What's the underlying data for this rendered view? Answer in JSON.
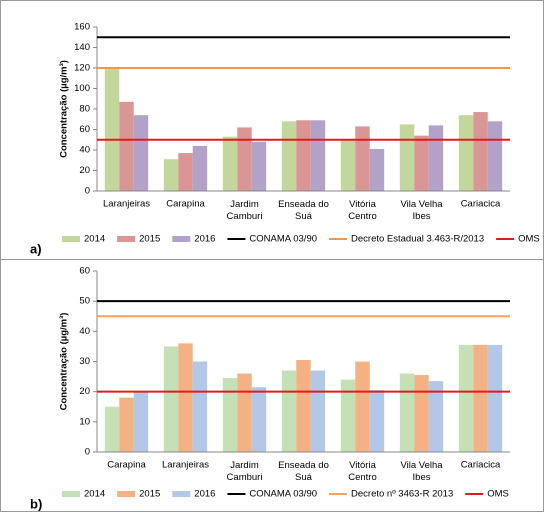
{
  "chart_data": [
    {
      "type": "bar",
      "panel_label": "a)",
      "y_label": "Concentração (µg/m³)",
      "categories": [
        "Laranjeiras",
        "Carapina",
        "Jardim\nCamburi",
        "Enseada do\nSuá",
        "Vitória\nCentro",
        "Vila Velha\nIbes",
        "Cariacica"
      ],
      "series": [
        {
          "name": "2014",
          "color": "#c3d69b",
          "values": [
            120,
            31,
            53,
            68,
            50,
            65,
            74
          ]
        },
        {
          "name": "2015",
          "color": "#d99694",
          "values": [
            87,
            37,
            62,
            69,
            63,
            54,
            77
          ]
        },
        {
          "name": "2016",
          "color": "#b3a2c7",
          "values": [
            74,
            44,
            48,
            69,
            41,
            64,
            68
          ]
        }
      ],
      "reference_lines": [
        {
          "name": "CONAMA 03/90",
          "color": "#000000",
          "value": 150
        },
        {
          "name": "Decreto Estadual 3.463-R/2013",
          "color": "#f79646",
          "value": 120
        },
        {
          "name": "OMS",
          "color": "#e41a1c",
          "value": 50
        }
      ],
      "ylim": [
        0,
        160
      ],
      "yticks": [
        0,
        20,
        40,
        60,
        80,
        100,
        120,
        140,
        160
      ],
      "grid": false
    },
    {
      "type": "bar",
      "panel_label": "b)",
      "y_label": "Concentração (µg/m³)",
      "categories": [
        "Carapina",
        "Laranjeiras",
        "Jardim\nCamburi",
        "Enseada do\nSuá",
        "Vitória\nCentro",
        "Vila Velha\nIbes",
        "Cariacica"
      ],
      "series": [
        {
          "name": "2014",
          "color": "#c5e0b4",
          "values": [
            15,
            35,
            24.5,
            27,
            24,
            26,
            35.5
          ]
        },
        {
          "name": "2015",
          "color": "#f4b183",
          "values": [
            18,
            36,
            26,
            30.5,
            30,
            25.5,
            35.5
          ]
        },
        {
          "name": "2016",
          "color": "#b4c7e7",
          "values": [
            20,
            30,
            21.5,
            27,
            20.5,
            23.5,
            35.5
          ]
        }
      ],
      "reference_lines": [
        {
          "name": "CONAMA 03/90",
          "color": "#000000",
          "value": 50
        },
        {
          "name": "Decreto nº 3463-R 2013",
          "color": "#f4a460",
          "value": 45
        },
        {
          "name": "OMS",
          "color": "#e41a1c",
          "value": 20
        }
      ],
      "ylim": [
        0,
        60
      ],
      "yticks": [
        0,
        10,
        20,
        30,
        40,
        50,
        60
      ],
      "grid": false
    }
  ]
}
